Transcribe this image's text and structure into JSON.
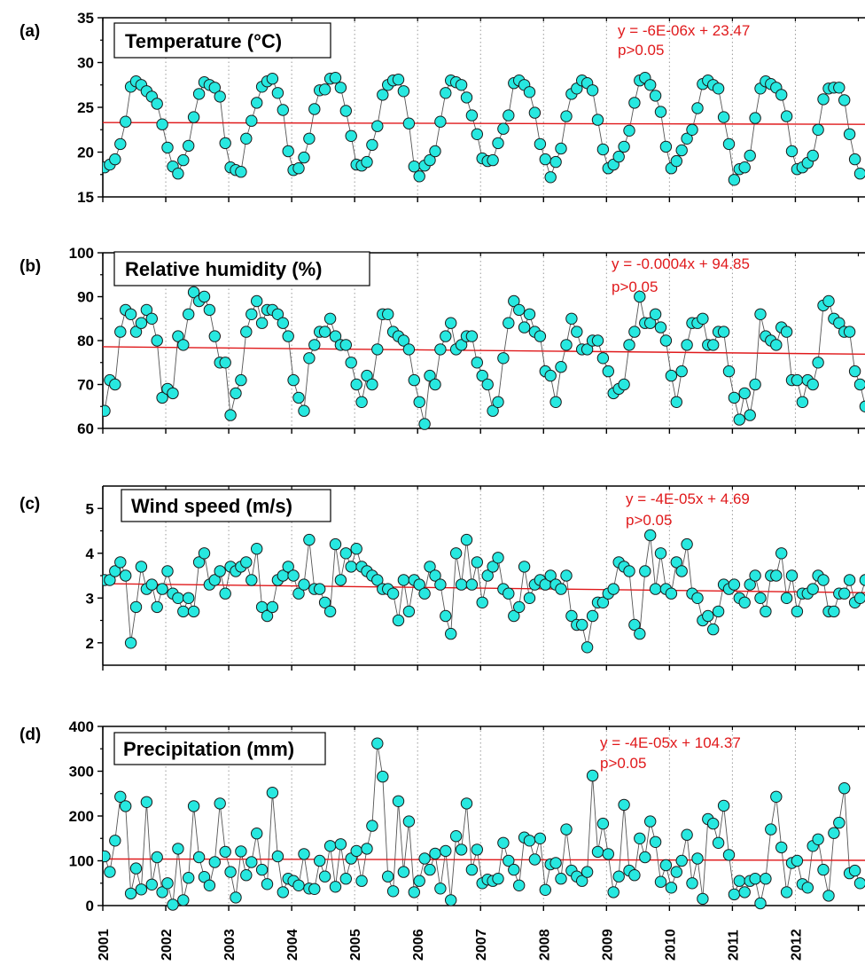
{
  "colors": {
    "marker_fill": "#27e8e0",
    "marker_edge": "#1a1a1a",
    "trend": "#e0191b",
    "grid": "#9a9a9a",
    "line": "#555555"
  },
  "x_axis": {
    "labels": [
      "2001",
      "2002",
      "2003",
      "2004",
      "2005",
      "2006",
      "2007",
      "2008",
      "2009",
      "2010",
      "2011",
      "2012"
    ]
  },
  "chart_data": [
    {
      "type": "line",
      "panel": "(a)",
      "title": "Temperature (°C)",
      "trend_equation": "y = -6E-06x + 23.47",
      "p_value": "p>0.05",
      "x_start": "2001-01",
      "x_step": "month",
      "ylim": [
        15,
        35
      ],
      "yticks": [
        15,
        20,
        25,
        30,
        35
      ],
      "trend_line": [
        23.3,
        23.1
      ],
      "values": [
        18.3,
        18.6,
        19.2,
        20.9,
        23.4,
        27.3,
        27.9,
        27.5,
        26.8,
        26.2,
        25.4,
        23.1,
        20.5,
        18.4,
        17.6,
        19.1,
        20.7,
        23.9,
        26.5,
        27.8,
        27.5,
        27.2,
        26.2,
        21.0,
        18.3,
        18.0,
        17.8,
        21.5,
        23.5,
        25.5,
        27.3,
        27.9,
        28.2,
        26.6,
        24.7,
        20.1,
        18.0,
        18.2,
        19.4,
        21.5,
        24.8,
        26.9,
        27.0,
        28.2,
        28.3,
        27.2,
        24.6,
        21.8,
        18.6,
        18.5,
        18.9,
        20.8,
        22.9,
        26.4,
        27.5,
        28.0,
        28.1,
        26.8,
        23.2,
        18.4,
        17.3,
        18.5,
        19.1,
        20.1,
        23.4,
        26.6,
        28.0,
        27.8,
        27.5,
        26.1,
        24.1,
        22.0,
        19.3,
        19.0,
        19.1,
        21.0,
        22.6,
        24.1,
        27.7,
        28.0,
        27.5,
        26.7,
        24.4,
        20.9,
        19.2,
        17.2,
        18.9,
        20.4,
        24.0,
        26.5,
        27.1,
        28.0,
        27.7,
        26.9,
        23.6,
        20.3,
        18.2,
        18.6,
        19.5,
        20.6,
        22.4,
        25.5,
        28.0,
        28.3,
        27.5,
        26.3,
        24.5,
        20.6,
        18.2,
        19.0,
        20.2,
        21.5,
        22.5,
        24.9,
        27.6,
        28.0,
        27.5,
        27.1,
        23.9,
        20.9,
        16.9,
        18.1,
        18.3,
        19.6,
        23.8,
        27.1,
        27.9,
        27.6,
        27.2,
        26.4,
        24.0,
        20.1,
        18.1,
        18.3,
        18.8,
        19.6,
        22.5,
        25.9,
        27.1,
        27.2,
        27.2,
        25.8,
        22.0,
        19.2,
        17.6
      ]
    },
    {
      "type": "line",
      "panel": "(b)",
      "title": "Relative humidity (%)",
      "trend_equation": "y = -0.0004x + 94.85",
      "p_value": "p>0.05",
      "x_start": "2001-01",
      "x_step": "month",
      "ylim": [
        60,
        100
      ],
      "yticks": [
        60,
        70,
        80,
        90,
        100
      ],
      "trend_line": [
        78.6,
        76.9
      ],
      "values": [
        64,
        71,
        70,
        82,
        87,
        86,
        82,
        84,
        87,
        85,
        80,
        67,
        69,
        68,
        81,
        79,
        86,
        91,
        89,
        90,
        87,
        81,
        75,
        75,
        63,
        68,
        71,
        82,
        86,
        89,
        84,
        87,
        87,
        86,
        84,
        81,
        71,
        67,
        64,
        76,
        79,
        82,
        82,
        85,
        81,
        79,
        79,
        75,
        70,
        66,
        72,
        70,
        78,
        86,
        86,
        82,
        81,
        80,
        78,
        71,
        66,
        61,
        72,
        70,
        78,
        81,
        84,
        78,
        79,
        81,
        81,
        75,
        72,
        70,
        64,
        66,
        76,
        84,
        89,
        87,
        83,
        86,
        82,
        81,
        73,
        72,
        66,
        74,
        79,
        85,
        82,
        78,
        78,
        80,
        80,
        76,
        73,
        68,
        69,
        70,
        79,
        82,
        90,
        84,
        84,
        86,
        83,
        80,
        72,
        66,
        73,
        79,
        84,
        84,
        85,
        79,
        79,
        82,
        82,
        73,
        67,
        62,
        68,
        63,
        70,
        86,
        81,
        80,
        79,
        83,
        82,
        71,
        71,
        66,
        71,
        70,
        75,
        88,
        89,
        85,
        84,
        82,
        82,
        73,
        70,
        65
      ]
    },
    {
      "type": "line",
      "panel": "(c)",
      "title": "Wind speed (m/s)",
      "trend_equation": "y = -4E-05x + 4.69",
      "p_value": "p>0.05",
      "x_start": "2001-01",
      "x_step": "month",
      "ylim": [
        1.5,
        5.5
      ],
      "yticks": [
        2,
        3,
        4,
        5
      ],
      "trend_line": [
        3.32,
        3.12
      ],
      "values": [
        3.4,
        3.4,
        3.6,
        3.8,
        3.5,
        2.0,
        2.8,
        3.7,
        3.2,
        3.3,
        2.8,
        3.2,
        3.6,
        3.1,
        3.0,
        2.7,
        3.0,
        2.7,
        3.8,
        4.0,
        3.3,
        3.4,
        3.6,
        3.1,
        3.7,
        3.6,
        3.7,
        3.8,
        3.4,
        4.1,
        2.8,
        2.6,
        2.8,
        3.4,
        3.5,
        3.7,
        3.5,
        3.1,
        3.3,
        4.3,
        3.2,
        3.2,
        2.9,
        2.7,
        4.2,
        3.4,
        4.0,
        3.7,
        4.1,
        3.7,
        3.6,
        3.5,
        3.4,
        3.2,
        3.2,
        3.1,
        2.5,
        3.4,
        2.7,
        3.4,
        3.3,
        3.1,
        3.7,
        3.5,
        3.3,
        2.6,
        2.2,
        4.0,
        3.3,
        4.3,
        3.3,
        3.8,
        2.9,
        3.5,
        3.7,
        3.9,
        3.2,
        3.1,
        2.6,
        2.8,
        3.7,
        3.0,
        3.3,
        3.4,
        3.3,
        3.5,
        3.3,
        3.2,
        3.5,
        2.6,
        2.4,
        2.4,
        1.9,
        2.6,
        2.9,
        2.9,
        3.1,
        3.2,
        3.8,
        3.7,
        3.6,
        2.4,
        2.2,
        3.6,
        4.4,
        3.2,
        4.0,
        3.2,
        3.1,
        3.8,
        3.6,
        4.2,
        3.1,
        3.0,
        2.5,
        2.6,
        2.3,
        2.7,
        3.3,
        3.2,
        3.3,
        3.0,
        2.9,
        3.3,
        3.5,
        3.0,
        2.7,
        3.5,
        3.5,
        4.0,
        3.0,
        3.5,
        2.7,
        3.1,
        3.1,
        3.2,
        3.5,
        3.4,
        2.7,
        2.7,
        3.1,
        3.1,
        3.4,
        2.9,
        3.0,
        3.4
      ]
    },
    {
      "type": "line",
      "panel": "(d)",
      "title": "Precipitation (mm)",
      "trend_equation": "y = -4E-05x + 104.37",
      "p_value": "p>0.05",
      "x_start": "2001-01",
      "x_step": "month",
      "ylim": [
        0,
        400
      ],
      "yticks": [
        0,
        100,
        200,
        300,
        400
      ],
      "trend_line": [
        104,
        101
      ],
      "values": [
        110,
        75,
        145,
        243,
        222,
        27,
        83,
        36,
        231,
        47,
        108,
        30,
        50,
        2,
        127,
        12,
        62,
        222,
        108,
        64,
        45,
        97,
        228,
        120,
        75,
        18,
        121,
        68,
        97,
        161,
        80,
        48,
        252,
        110,
        30,
        60,
        55,
        45,
        115,
        38,
        37,
        100,
        65,
        133,
        42,
        137,
        60,
        105,
        122,
        55,
        127,
        178,
        362,
        288,
        65,
        32,
        233,
        75,
        188,
        30,
        55,
        105,
        80,
        116,
        38,
        122,
        12,
        155,
        125,
        228,
        80,
        125,
        50,
        58,
        55,
        60,
        140,
        100,
        80,
        45,
        152,
        145,
        103,
        150,
        35,
        92,
        95,
        60,
        170,
        78,
        65,
        55,
        75,
        290,
        120,
        183,
        115,
        30,
        65,
        225,
        78,
        68,
        150,
        108,
        188,
        142,
        53,
        90,
        40,
        75,
        100,
        158,
        50,
        105,
        15,
        193,
        183,
        140,
        223,
        113,
        25,
        55,
        30,
        55,
        60,
        5,
        60,
        170,
        243,
        130,
        30,
        95,
        100,
        48,
        40,
        133,
        148,
        80,
        22,
        162,
        185,
        262,
        72,
        78,
        50
      ]
    }
  ]
}
